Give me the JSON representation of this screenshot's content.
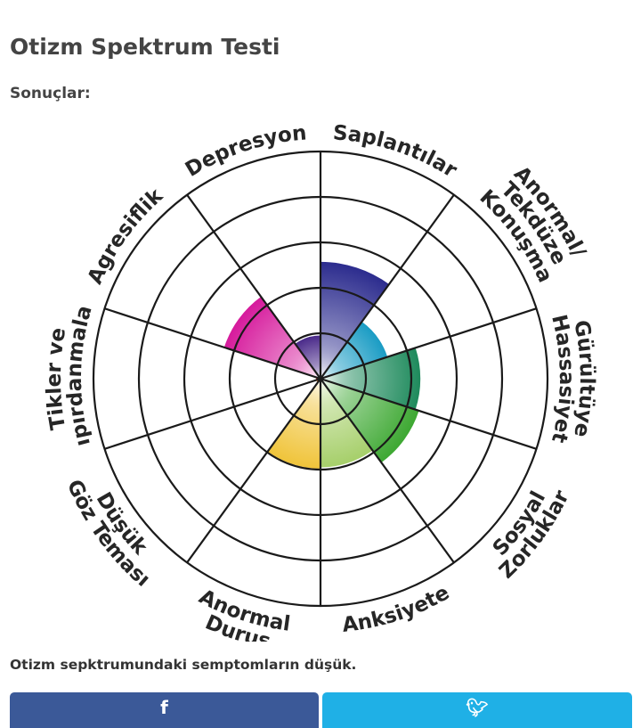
{
  "page": {
    "title": "Otizm Spektrum Testi",
    "results_label": "Sonuçlar:",
    "result_text": "Otizm sepktrumundaki semptomların düşük."
  },
  "share": {
    "facebook_icon": "facebook-icon",
    "twitter_icon": "twitter-icon"
  },
  "chart_data": {
    "type": "polar-area",
    "max_value": 5,
    "grid_rings": 5,
    "categories": [
      {
        "label": [
          "Saplantılar"
        ],
        "value": 2.57,
        "color": "#2c2c8e"
      },
      {
        "label": [
          "Anormal/",
          "Tekdüze",
          "Konuşma"
        ],
        "value": 1.55,
        "color": "#1a9cc4"
      },
      {
        "label": [
          "Gürültüye",
          "Hassasiyet"
        ],
        "value": 2.2,
        "color": "#1e8a5c"
      },
      {
        "label": [
          "Sosyal",
          "Zorluklar"
        ],
        "value": 2.28,
        "color": "#3da832"
      },
      {
        "label": [
          "Anksiyete"
        ],
        "value": 1.95,
        "color": "#a6cf6a"
      },
      {
        "label": [
          "Anormal",
          "Duruş"
        ],
        "value": 1.98,
        "color": "#f0c43a"
      },
      {
        "label": [
          "Düşük",
          "Göz Teması"
        ],
        "value": 0.1,
        "color": "#e07a1f"
      },
      {
        "label": [
          "Tikler ve",
          "Kıpırdanmalar"
        ],
        "value": 0.1,
        "color": "#d4232c"
      },
      {
        "label": [
          "Agresiflik"
        ],
        "value": 2.23,
        "color": "#d61a9c"
      },
      {
        "label": [
          "Depresyon"
        ],
        "value": 0.95,
        "color": "#4a2a8a"
      }
    ]
  }
}
